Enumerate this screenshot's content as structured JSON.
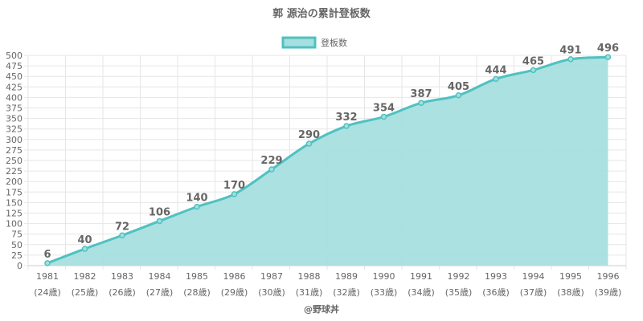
{
  "chart_data": {
    "type": "area",
    "title": "郭 源治の累計登板数",
    "legend": {
      "label": "登板数",
      "position": "top"
    },
    "categories": [
      "1981",
      "1982",
      "1983",
      "1984",
      "1985",
      "1986",
      "1987",
      "1988",
      "1989",
      "1990",
      "1991",
      "1992",
      "1993",
      "1994",
      "1995",
      "1996"
    ],
    "subcategories": [
      "(24歳)",
      "(25歳)",
      "(26歳)",
      "(27歳)",
      "(28歳)",
      "(29歳)",
      "(30歳)",
      "(31歳)",
      "(32歳)",
      "(33歳)",
      "(34歳)",
      "(35歳)",
      "(36歳)",
      "(37歳)",
      "(38歳)",
      "(39歳)"
    ],
    "series": [
      {
        "name": "登板数",
        "values": [
          6,
          40,
          72,
          106,
          140,
          170,
          229,
          290,
          332,
          354,
          387,
          405,
          444,
          465,
          491,
          496
        ]
      }
    ],
    "ylim": [
      0,
      500
    ],
    "ytick_step": 25,
    "grid": true,
    "colors": {
      "line": "#4fc1c0",
      "fill": "#a6dfdf",
      "grid": "#e6e6e6",
      "text": "#666666"
    }
  },
  "credit": "@野球丼"
}
